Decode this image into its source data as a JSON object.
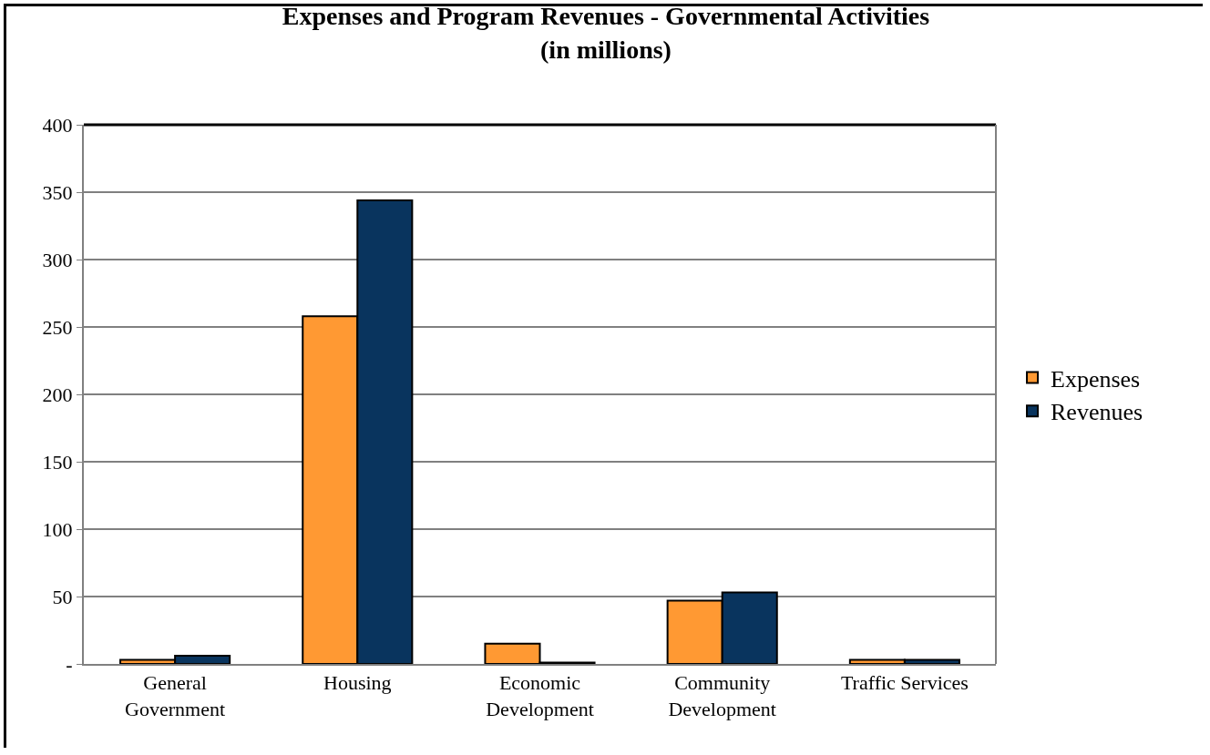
{
  "chart_data": {
    "type": "bar",
    "title": "Expenses and Program Revenues - Governmental Activities\n(in millions)",
    "categories": [
      "General\nGovernment",
      "Housing",
      "Economic\nDevelopment",
      "Community\nDevelopment",
      "Traffic Services"
    ],
    "series": [
      {
        "name": "Expenses",
        "color": "#ff9933",
        "values": [
          3,
          258,
          15,
          47,
          3
        ]
      },
      {
        "name": "Revenues",
        "color": "#09345e",
        "values": [
          6,
          344,
          1,
          53,
          3
        ]
      }
    ],
    "ylim": [
      0,
      400
    ],
    "yticks": [
      {
        "value": 0,
        "label": "-"
      },
      50,
      100,
      150,
      200,
      250,
      300,
      350,
      400
    ],
    "grid": "y",
    "legend": "right"
  }
}
